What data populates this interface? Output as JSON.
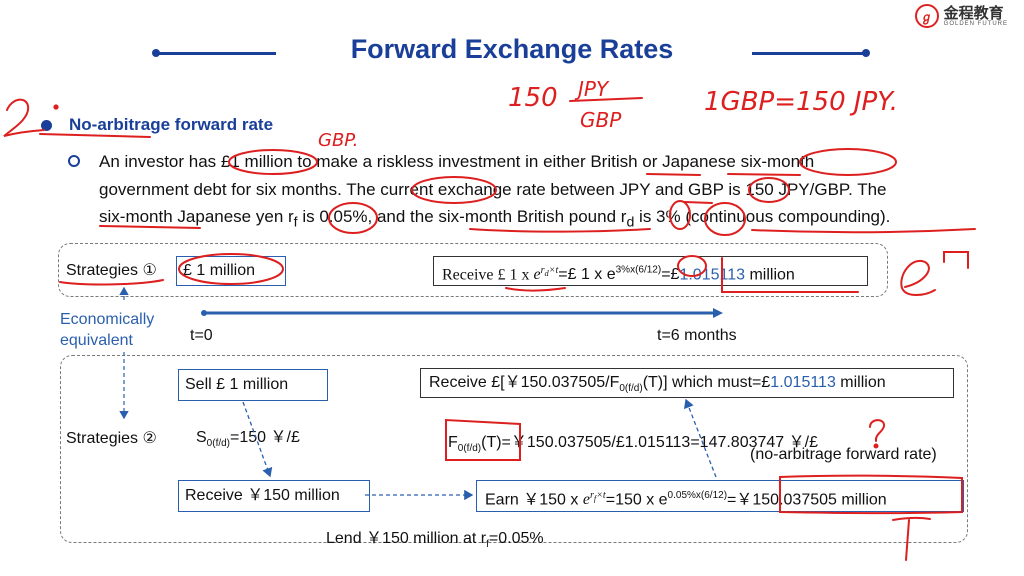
{
  "header": {
    "title": "Forward Exchange Rates",
    "logo": {
      "cn": "金程教育",
      "en": "GOLDEN FUTURE",
      "icon": "logo-icon"
    },
    "accent": "#1a3f99"
  },
  "section": {
    "heading": "No-arbitrage forward rate",
    "paragraph_lines": [
      "An investor has £1 million to make a riskless investment in either British or Japanese six-month",
      "government debt for six months. The current exchange rate between JPY and GBP is 150 JPY/GBP. The",
      "six-month Japanese yen r_f is 0.05%, and the six-month British pound r_d is 3% (continuous compounding)."
    ]
  },
  "diagram": {
    "strategy1_label": "Strategies ①",
    "strategy1_amount": "£ 1 million",
    "strategy1_receive": {
      "prefix": "Receive £ 1 x ",
      "formula": "e^(r_d×t)",
      "middle": "=£ 1 x e^(3%x(6/12))=£",
      "value": "1.015113",
      "suffix": " million"
    },
    "econ_label": [
      "Economically",
      "equivalent"
    ],
    "timeline_start": "t=0",
    "timeline_end": "t=6 months",
    "strategy2_label": "Strategies ②",
    "sell": "Sell £ 1 million",
    "spot": "S0(f/d)=150 ￥/£",
    "receive_jpy": "Receive ￥150 million",
    "receive2": {
      "prefix": "Receive £[￥150.037505/F0(f/d)(T)] which must=£",
      "value": "1.015113",
      "suffix": " million"
    },
    "forward": "F0(f/d)(T)=￥150.037505/£1.015113=147.803747 ￥/£",
    "no_arb_note": "(no-arbitrage forward rate)",
    "earn": "Earn ￥150 x e^(r_f×t)=150 x e^(0.05%x(6/12))=￥150.037505 million",
    "lend": "Lend ￥150 million at r_f=0.05%"
  },
  "handwriting": {
    "marker": "2.",
    "fraction": "150 JPY / GBP",
    "equation": "1GBP = 150 JPY.",
    "gbp": "GBP.",
    "e_box": "e",
    "question": "?"
  },
  "colors": {
    "ink": "#dd1f1f",
    "box_border": "#2a5fae",
    "value_blue": "#2a5fae"
  }
}
